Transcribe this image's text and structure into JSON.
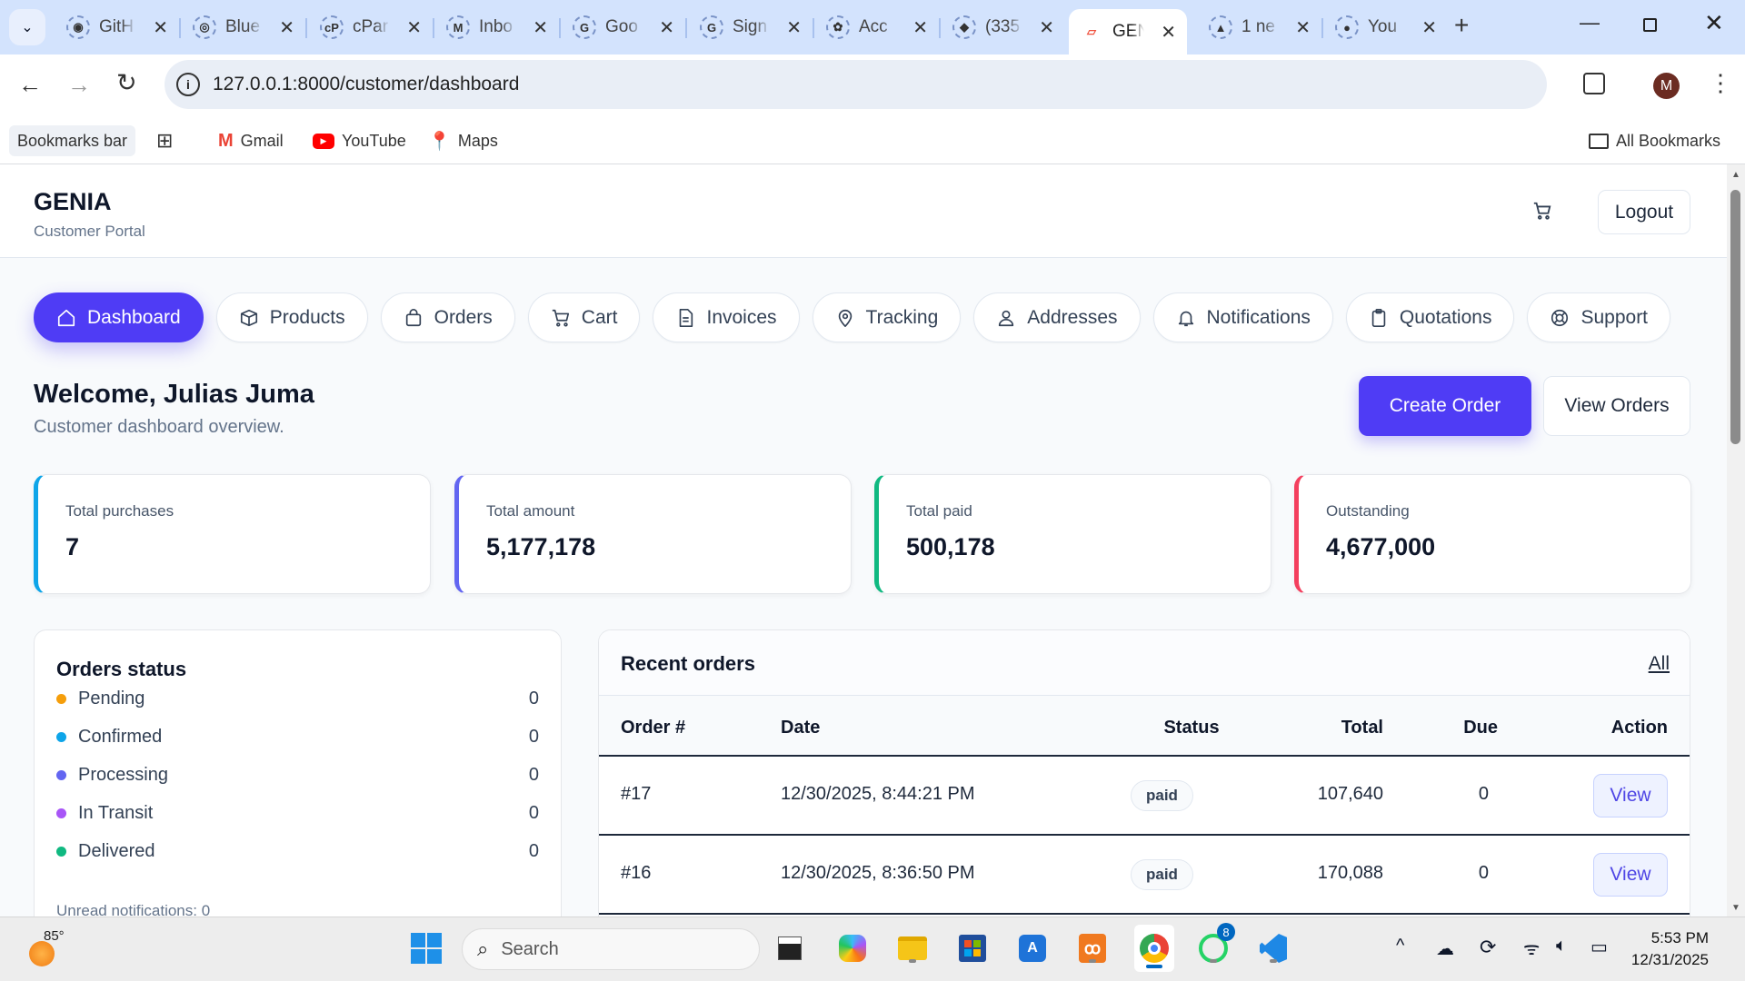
{
  "browser": {
    "tabs": [
      {
        "title": "GitH",
        "icon": "github-icon"
      },
      {
        "title": "Blue",
        "icon": "blue-site-icon"
      },
      {
        "title": "cPar",
        "icon": "cpanel-icon"
      },
      {
        "title": "Inbo",
        "icon": "gmail-icon"
      },
      {
        "title": "Goo",
        "icon": "google-icon"
      },
      {
        "title": "Sign",
        "icon": "google-icon"
      },
      {
        "title": "Acc",
        "icon": "openai-icon"
      },
      {
        "title": "(335",
        "icon": "app-icon"
      },
      {
        "title": "GEN",
        "icon": "laravel-icon",
        "active": true
      },
      {
        "title": "1 ne",
        "icon": "notification-icon"
      },
      {
        "title": "You",
        "icon": "globe-icon"
      }
    ],
    "url": "127.0.0.1:8000/customer/dashboard",
    "profile_initial": "M",
    "bookmarks": {
      "bar_label": "Bookmarks bar",
      "items": [
        "Gmail",
        "YouTube",
        "Maps"
      ],
      "all_label": "All Bookmarks"
    }
  },
  "header": {
    "brand": "GENIA",
    "subtitle": "Customer Portal",
    "logout": "Logout"
  },
  "nav": [
    {
      "label": "Dashboard",
      "icon": "home-icon",
      "active": true
    },
    {
      "label": "Products",
      "icon": "box-icon"
    },
    {
      "label": "Orders",
      "icon": "bag-icon"
    },
    {
      "label": "Cart",
      "icon": "cart-icon"
    },
    {
      "label": "Invoices",
      "icon": "document-icon"
    },
    {
      "label": "Tracking",
      "icon": "map-pin-icon"
    },
    {
      "label": "Addresses",
      "icon": "user-icon"
    },
    {
      "label": "Notifications",
      "icon": "bell-icon"
    },
    {
      "label": "Quotations",
      "icon": "clipboard-icon"
    },
    {
      "label": "Support",
      "icon": "lifebuoy-icon"
    }
  ],
  "welcome": {
    "title": "Welcome, Julias Juma",
    "subtitle": "Customer dashboard overview.",
    "create_order": "Create Order",
    "view_orders": "View Orders"
  },
  "stats": [
    {
      "label": "Total purchases",
      "value": "7",
      "color": "#0ea5e9"
    },
    {
      "label": "Total amount",
      "value": "5,177,178",
      "color": "#6366f1"
    },
    {
      "label": "Total paid",
      "value": "500,178",
      "color": "#10b981"
    },
    {
      "label": "Outstanding",
      "value": "4,677,000",
      "color": "#f43f5e"
    }
  ],
  "orders_status": {
    "title": "Orders status",
    "items": [
      {
        "label": "Pending",
        "count": "0",
        "color": "#f59e0b"
      },
      {
        "label": "Confirmed",
        "count": "0",
        "color": "#0ea5e9"
      },
      {
        "label": "Processing",
        "count": "0",
        "color": "#6366f1"
      },
      {
        "label": "In Transit",
        "count": "0",
        "color": "#a855f7"
      },
      {
        "label": "Delivered",
        "count": "0",
        "color": "#10b981"
      }
    ],
    "unread": "Unread notifications: 0"
  },
  "recent_orders": {
    "title": "Recent orders",
    "all_link": "All",
    "columns": [
      "Order #",
      "Date",
      "Status",
      "Total",
      "Due",
      "Action"
    ],
    "rows": [
      {
        "order": "#17",
        "date": "12/30/2025, 8:44:21 PM",
        "status": "paid",
        "total": "107,640",
        "due": "0",
        "action": "View"
      },
      {
        "order": "#16",
        "date": "12/30/2025, 8:36:50 PM",
        "status": "paid",
        "total": "170,088",
        "due": "0",
        "action": "View"
      }
    ]
  },
  "taskbar": {
    "weather": "85°",
    "search": "Search",
    "whatsapp_badge": "8",
    "time": "5:53 PM",
    "date": "12/31/2025"
  }
}
